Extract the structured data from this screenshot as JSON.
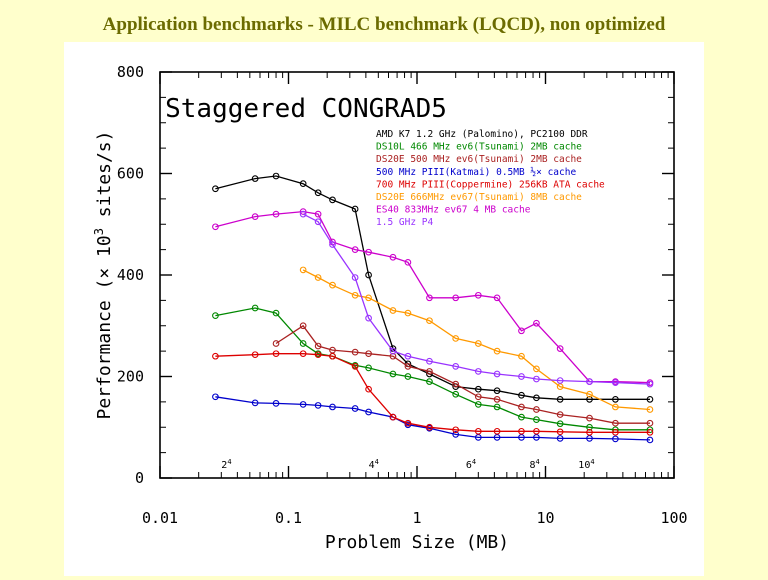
{
  "slide_title": "Application benchmarks - MILC benchmark (LQCD), non optimized",
  "chart_data": {
    "type": "line",
    "title": "Staggered CONGRAD5",
    "xlabel": "Problem Size (MB)",
    "ylabel_parts": [
      "Performance (× 10",
      "3",
      " sites/s)"
    ],
    "xscale": "log",
    "xlim": [
      0.01,
      100
    ],
    "ylim": [
      0,
      800
    ],
    "x_ticks": [
      {
        "v": 0.01,
        "label": "0.01"
      },
      {
        "v": 0.1,
        "label": "0.1"
      },
      {
        "v": 1,
        "label": "1"
      },
      {
        "v": 10,
        "label": "10"
      },
      {
        "v": 100,
        "label": "100"
      }
    ],
    "y_ticks": [
      {
        "v": 0,
        "label": "0"
      },
      {
        "v": 200,
        "label": "200"
      },
      {
        "v": 400,
        "label": "400"
      },
      {
        "v": 600,
        "label": "600"
      },
      {
        "v": 800,
        "label": "800"
      }
    ],
    "lattice_labels": [
      {
        "x": 0.03,
        "base": "2",
        "exp": "4"
      },
      {
        "x": 0.42,
        "base": "4",
        "exp": "4"
      },
      {
        "x": 2.4,
        "base": "6",
        "exp": "4"
      },
      {
        "x": 7.5,
        "base": "8",
        "exp": "4"
      },
      {
        "x": 18,
        "base": "10",
        "exp": "4"
      }
    ],
    "legend_position": "top-right",
    "series": [
      {
        "name": "AMD K7 1.2 GHz (Palomino), PC2100 DDR",
        "color": "#000000",
        "points": [
          [
            0.027,
            570
          ],
          [
            0.055,
            590
          ],
          [
            0.08,
            595
          ],
          [
            0.13,
            580
          ],
          [
            0.17,
            562
          ],
          [
            0.22,
            548
          ],
          [
            0.33,
            530
          ],
          [
            0.42,
            400
          ],
          [
            0.65,
            255
          ],
          [
            0.85,
            225
          ],
          [
            1.25,
            205
          ],
          [
            2.0,
            180
          ],
          [
            3.0,
            175
          ],
          [
            4.2,
            172
          ],
          [
            6.5,
            163
          ],
          [
            8.5,
            158
          ],
          [
            13,
            155
          ],
          [
            22,
            155
          ],
          [
            35,
            155
          ],
          [
            65,
            155
          ]
        ]
      },
      {
        "name": "DS10L 466 MHz ev6(Tsunami) 2MB cache",
        "color": "#008800",
        "points": [
          [
            0.027,
            320
          ],
          [
            0.055,
            335
          ],
          [
            0.08,
            325
          ],
          [
            0.13,
            265
          ],
          [
            0.17,
            245
          ],
          [
            0.22,
            240
          ],
          [
            0.33,
            222
          ],
          [
            0.42,
            217
          ],
          [
            0.65,
            205
          ],
          [
            0.85,
            200
          ],
          [
            1.25,
            190
          ],
          [
            2.0,
            165
          ],
          [
            3.0,
            145
          ],
          [
            4.2,
            140
          ],
          [
            6.5,
            120
          ],
          [
            8.5,
            115
          ],
          [
            13,
            107
          ],
          [
            22,
            100
          ],
          [
            35,
            95
          ],
          [
            65,
            95
          ]
        ]
      },
      {
        "name": "DS20E 500 MHz ev6(Tsunami) 2MB cache",
        "color": "#aa2222",
        "points": [
          [
            0.08,
            265
          ],
          [
            0.13,
            300
          ],
          [
            0.17,
            260
          ],
          [
            0.22,
            252
          ],
          [
            0.33,
            248
          ],
          [
            0.42,
            245
          ],
          [
            0.65,
            240
          ],
          [
            0.85,
            220
          ],
          [
            1.25,
            210
          ],
          [
            2.0,
            185
          ],
          [
            3.0,
            160
          ],
          [
            4.2,
            155
          ],
          [
            6.5,
            140
          ],
          [
            8.5,
            135
          ],
          [
            13,
            125
          ],
          [
            22,
            118
          ],
          [
            35,
            108
          ],
          [
            65,
            108
          ]
        ]
      },
      {
        "name": "500 MHz PIII(Katmai) 0.5MB ½× cache",
        "color": "#0000cc",
        "points": [
          [
            0.027,
            160
          ],
          [
            0.055,
            148
          ],
          [
            0.08,
            147
          ],
          [
            0.13,
            145
          ],
          [
            0.17,
            143
          ],
          [
            0.22,
            140
          ],
          [
            0.33,
            137
          ],
          [
            0.42,
            130
          ],
          [
            0.65,
            120
          ],
          [
            0.85,
            105
          ],
          [
            1.25,
            98
          ],
          [
            2.0,
            86
          ],
          [
            3.0,
            80
          ],
          [
            4.2,
            80
          ],
          [
            6.5,
            80
          ],
          [
            8.5,
            80
          ],
          [
            13,
            78
          ],
          [
            22,
            78
          ],
          [
            35,
            77
          ],
          [
            65,
            75
          ]
        ]
      },
      {
        "name": "700 MHz PIII(Coppermine) 256KB ATA cache",
        "color": "#dd0000",
        "points": [
          [
            0.027,
            240
          ],
          [
            0.055,
            243
          ],
          [
            0.08,
            245
          ],
          [
            0.13,
            245
          ],
          [
            0.17,
            243
          ],
          [
            0.22,
            240
          ],
          [
            0.33,
            220
          ],
          [
            0.42,
            175
          ],
          [
            0.65,
            120
          ],
          [
            0.85,
            108
          ],
          [
            1.25,
            100
          ],
          [
            2.0,
            95
          ],
          [
            3.0,
            92
          ],
          [
            4.2,
            92
          ],
          [
            6.5,
            92
          ],
          [
            8.5,
            92
          ],
          [
            13,
            91
          ],
          [
            22,
            90
          ],
          [
            35,
            90
          ],
          [
            65,
            90
          ]
        ]
      },
      {
        "name": "DS20E 666MHz ev67(Tsunami) 8MB cache",
        "color": "#ff9900",
        "points": [
          [
            0.13,
            410
          ],
          [
            0.17,
            395
          ],
          [
            0.22,
            380
          ],
          [
            0.33,
            360
          ],
          [
            0.42,
            355
          ],
          [
            0.65,
            330
          ],
          [
            0.85,
            325
          ],
          [
            1.25,
            310
          ],
          [
            2.0,
            275
          ],
          [
            3.0,
            265
          ],
          [
            4.2,
            250
          ],
          [
            6.5,
            240
          ],
          [
            8.5,
            215
          ],
          [
            13,
            180
          ],
          [
            22,
            165
          ],
          [
            35,
            140
          ],
          [
            65,
            135
          ]
        ]
      },
      {
        "name": "ES40 833MHz ev67 4 MB cache",
        "color": "#cc00cc",
        "points": [
          [
            0.027,
            495
          ],
          [
            0.055,
            515
          ],
          [
            0.08,
            520
          ],
          [
            0.13,
            525
          ],
          [
            0.17,
            520
          ],
          [
            0.22,
            465
          ],
          [
            0.33,
            450
          ],
          [
            0.42,
            445
          ],
          [
            0.65,
            435
          ],
          [
            0.85,
            425
          ],
          [
            1.25,
            355
          ],
          [
            2.0,
            355
          ],
          [
            3.0,
            360
          ],
          [
            4.2,
            355
          ],
          [
            6.5,
            290
          ],
          [
            8.5,
            305
          ],
          [
            13,
            255
          ],
          [
            22,
            190
          ],
          [
            35,
            190
          ],
          [
            65,
            188
          ]
        ]
      },
      {
        "name": "1.5 GHz P4",
        "color": "#9933ff",
        "points": [
          [
            0.13,
            520
          ],
          [
            0.17,
            505
          ],
          [
            0.22,
            460
          ],
          [
            0.33,
            395
          ],
          [
            0.42,
            315
          ],
          [
            0.65,
            250
          ],
          [
            0.85,
            240
          ],
          [
            1.25,
            230
          ],
          [
            2.0,
            220
          ],
          [
            3.0,
            210
          ],
          [
            4.2,
            205
          ],
          [
            6.5,
            200
          ],
          [
            8.5,
            195
          ],
          [
            13,
            192
          ],
          [
            22,
            190
          ],
          [
            35,
            188
          ],
          [
            65,
            185
          ]
        ]
      }
    ]
  }
}
